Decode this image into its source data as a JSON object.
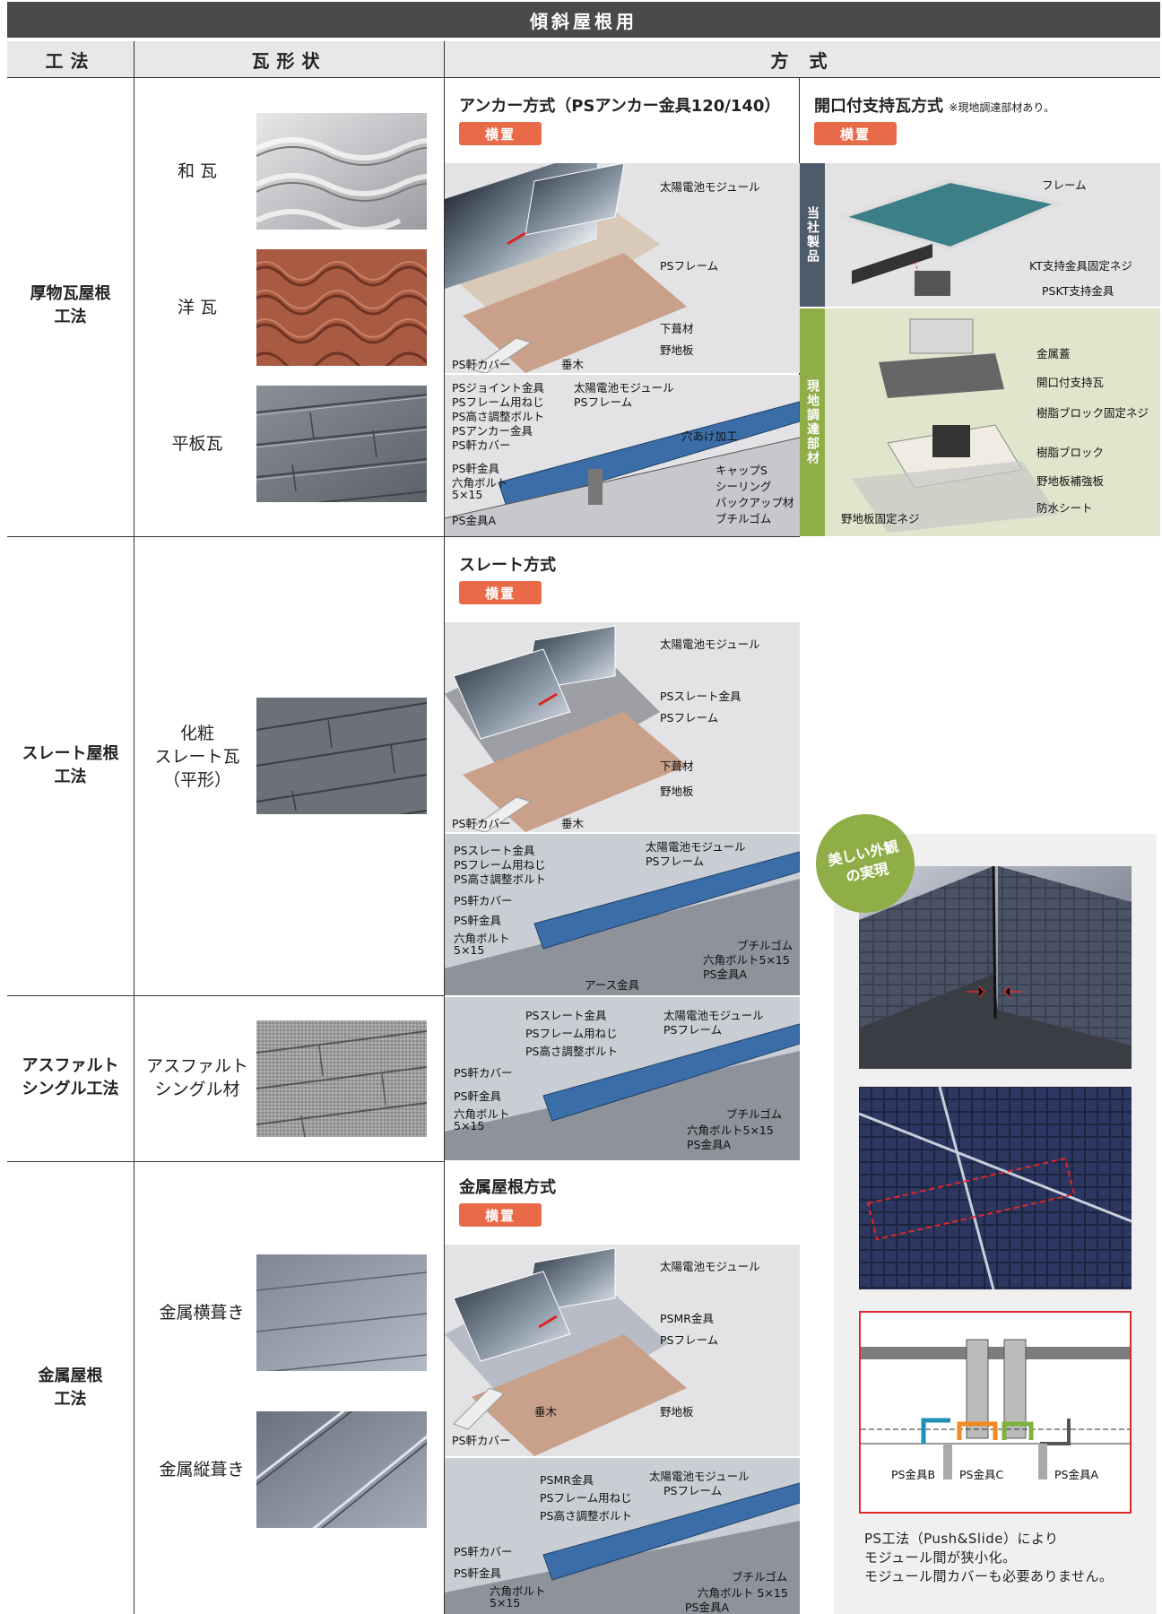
{
  "banner": "傾斜屋根用",
  "headers": {
    "method": "工法",
    "shape": "瓦形状",
    "system": "方 式"
  },
  "methods": {
    "thick": "厚物瓦屋根\n工法",
    "slate": "スレート屋根\n工法",
    "asphalt": "アスファルト\nシングル工法",
    "metal": "金属屋根\n工法"
  },
  "tiles": {
    "wa": "和 瓦",
    "yo": "洋 瓦",
    "hira": "平板瓦",
    "slate": "化粧\nスレート瓦\n（平形）",
    "asphalt": "アスファルト\nシングル材",
    "yoko": "金属横葺き",
    "tate": "金属縦葺き"
  },
  "anchor": {
    "title": "アンカー方式（PSアンカー金具120/140）",
    "tag": "横置",
    "top_labels": [
      "太陽電池モジュール",
      "PSフレーム",
      "下葺材",
      "野地板",
      "PS軒カバー",
      "垂木"
    ],
    "det_labels": [
      "PSジョイント金具",
      "PSフレーム用ねじ",
      "PS高さ調整ボルト",
      "PSアンカー金具",
      "PS軒カバー",
      "PS軒金具",
      "六角ボルト",
      "5×15",
      "PS金具A",
      "太陽電池モジュール",
      "PSフレーム",
      "穴あけ加工",
      "キャップS",
      "シーリング",
      "バックアップ材",
      "ブチルゴム"
    ]
  },
  "kaiko": {
    "title": "開口付支持瓦方式",
    "note": "※現地調達部材あり。",
    "tag": "横置",
    "side_top": "当社製品",
    "side_bottom": "現地調達部材",
    "top_labels": [
      "フレーム",
      "KT支持金具固定ネジ",
      "PSKT支持金具"
    ],
    "bottom_labels": [
      "金属蓋",
      "開口付支持瓦",
      "樹脂ブロック固定ネジ",
      "樹脂ブロック",
      "野地板補強板",
      "防水シート",
      "野地板固定ネジ"
    ]
  },
  "slate": {
    "title": "スレート方式",
    "tag": "横置",
    "top_labels": [
      "太陽電池モジュール",
      "PSスレート金具",
      "PSフレーム",
      "下葺材",
      "野地板",
      "PS軒カバー",
      "垂木"
    ],
    "det_labels": [
      "PSスレート金具",
      "PSフレーム用ねじ",
      "PS高さ調整ボルト",
      "PS軒カバー",
      "PS軒金具",
      "六角ボルト",
      "5×15",
      "太陽電池モジュール",
      "PSフレーム",
      "ブチルゴム",
      "六角ボルト5×15",
      "PS金具A",
      "アース金具"
    ]
  },
  "asphalt_det": [
    "PSスレート金具",
    "PSフレーム用ねじ",
    "PS高さ調整ボルト",
    "PS軒カバー",
    "PS軒金具",
    "六角ボルト",
    "5×15",
    "太陽電池モジュール",
    "PSフレーム",
    "ブチルゴム",
    "六角ボルト5×15",
    "PS金具A"
  ],
  "metal": {
    "title": "金属屋根方式",
    "tag": "横置",
    "top_labels": [
      "太陽電池モジュール",
      "PSMR金具",
      "PSフレーム",
      "垂木",
      "野地板",
      "PS軒カバー"
    ],
    "det_labels": [
      "PSMR金具",
      "PSフレーム用ねじ",
      "PS高さ調整ボルト",
      "PS軒カバー",
      "PS軒金具",
      "六角ボルト",
      "5×15",
      "太陽電池モジュール",
      "PSフレーム",
      "ブチルゴム",
      "六角ボルト 5×15",
      "PS金具A"
    ]
  },
  "appeal": {
    "badge": "美しい外観\nの実現",
    "cross_labels": [
      "PS金具B",
      "PS金具C",
      "PS金具A"
    ],
    "note": "PS工法（Push&Slide）により\nモジュール間が狭小化。\nモジュール間カバーも必要ありません。"
  },
  "colors": {
    "banner": "#4a4a4a",
    "tag": "#e86a48",
    "side_dark": "#4d5b6a",
    "side_green": "#8fae48",
    "green_bg": "#dfe6cc",
    "panel_blue": "#3b6ea8"
  }
}
